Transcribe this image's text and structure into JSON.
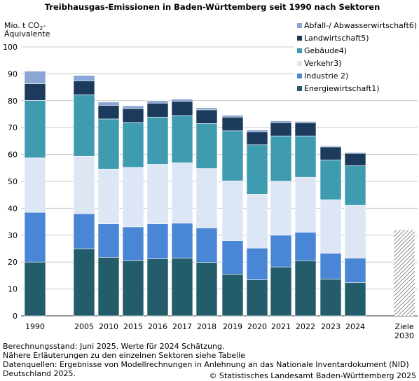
{
  "chart_data": {
    "type": "bar",
    "stacked": true,
    "title": "Treibhausgas-Emissionen in Baden-Württemberg seit 1990 nach Sektoren",
    "ylabel_line1": "Mio. t CO",
    "ylabel_sub": "2",
    "ylabel_suffix": "-",
    "ylabel_line2": "Äquivalente",
    "ylim": [
      0,
      100
    ],
    "yticks": [
      "0",
      "10",
      "20",
      "30",
      "40",
      "50",
      "60",
      "70",
      "80",
      "90",
      "100"
    ],
    "grid": true,
    "legend_position": "top-right",
    "categories": [
      "1990",
      "2005",
      "2010",
      "2015",
      "2016",
      "2017",
      "2018",
      "2019",
      "2020",
      "2021",
      "2022",
      "2023",
      "2024"
    ],
    "series": [
      {
        "name": "Energiewirtschaft1)",
        "color": "#235c6b",
        "values": [
          20.0,
          25.0,
          21.8,
          20.6,
          21.2,
          21.5,
          19.9,
          15.5,
          13.4,
          18.2,
          20.5,
          13.7,
          12.4
        ]
      },
      {
        "name": "Industrie 2)",
        "color": "#4a86d6",
        "values": [
          18.5,
          13.0,
          12.4,
          12.5,
          13.0,
          13.0,
          12.8,
          12.5,
          11.8,
          11.8,
          10.6,
          9.6,
          9.1
        ]
      },
      {
        "name": "Verkehr3)",
        "color": "#dce6f5",
        "values": [
          20.3,
          21.3,
          20.4,
          22.1,
          22.2,
          22.4,
          22.1,
          22.2,
          20.0,
          20.1,
          20.4,
          19.9,
          19.6
        ]
      },
      {
        "name": "Gebäude4)",
        "color": "#3f9bb0",
        "values": [
          21.3,
          22.9,
          18.6,
          16.7,
          17.5,
          17.6,
          16.7,
          18.6,
          18.4,
          16.8,
          15.4,
          14.8,
          14.7
        ]
      },
      {
        "name": "Landwirtschaft5)",
        "color": "#1b3a5c",
        "values": [
          6.2,
          5.2,
          5.1,
          5.2,
          5.2,
          5.3,
          5.1,
          5.1,
          4.9,
          5.0,
          4.9,
          4.8,
          4.6
        ]
      },
      {
        "name": "Abfall-/ Abwasserwirtschaft6)",
        "color": "#8aa6d4",
        "values": [
          4.7,
          2.0,
          1.2,
          1.0,
          0.9,
          0.8,
          0.8,
          0.7,
          0.6,
          0.6,
          0.5,
          0.4,
          0.4
        ]
      }
    ],
    "target": {
      "label_line1": "Ziele",
      "label_line2": "2030",
      "value": 32
    }
  },
  "footer": {
    "line1": "Berechnungsstand: Juni 2025. Werte für 2024 Schätzung.",
    "line2": "Nähere Erläuterungen zu den einzelnen Sektoren siehe Tabelle",
    "line3": "Datenquellen: Ergebnisse von Modellrechnungen in Anlehnung an das Nationale Inventardokument (NID)",
    "line4": "Deutschland 2025.",
    "copyright": "© Statistisches Landesamt Baden-Württemberg 2025"
  }
}
